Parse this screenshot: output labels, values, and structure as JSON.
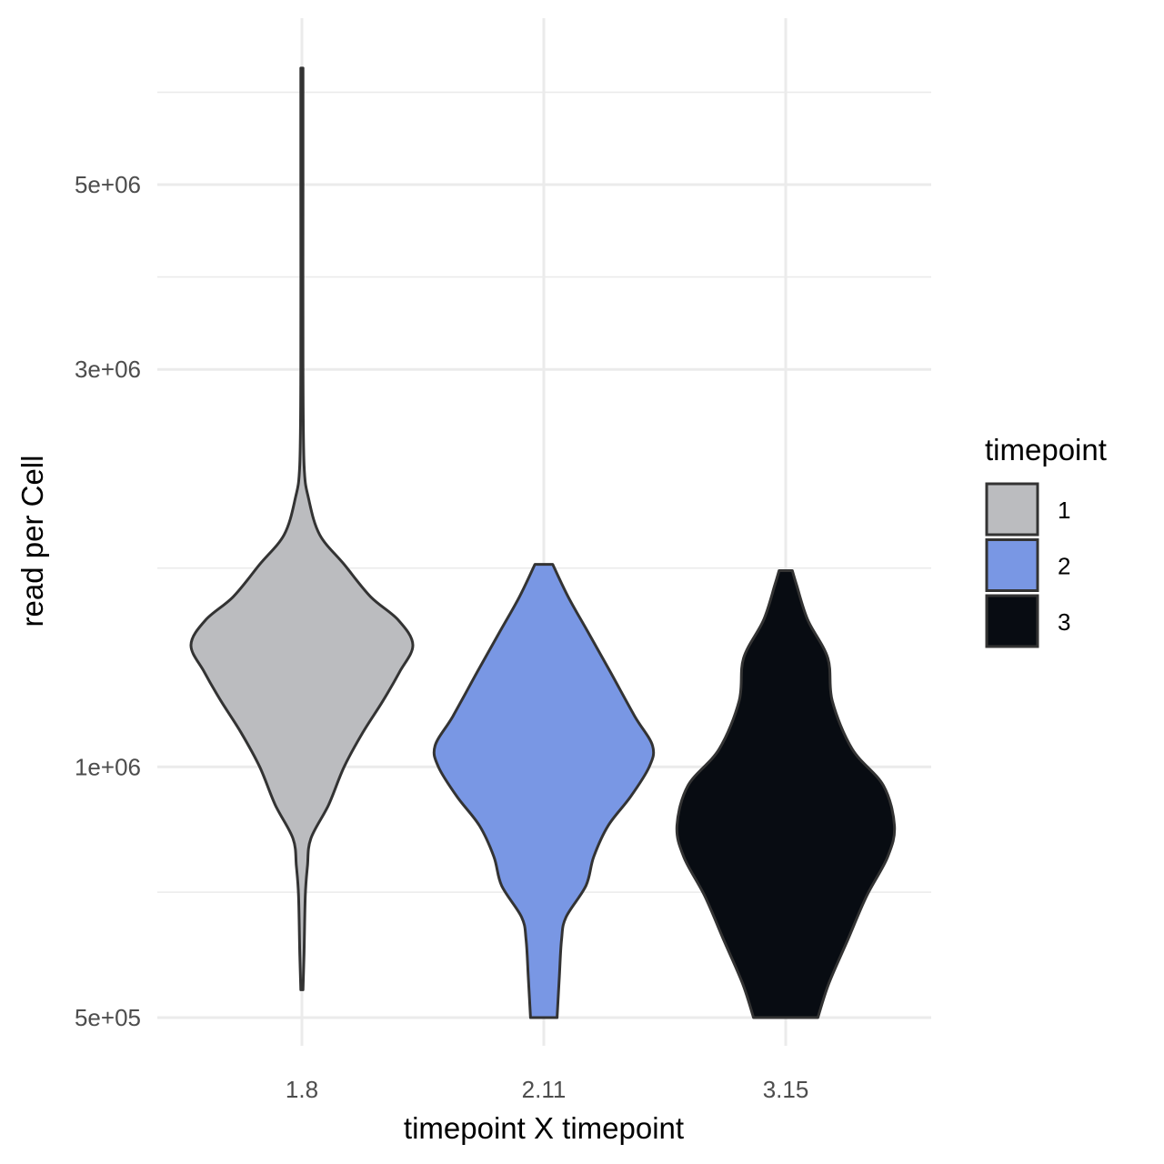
{
  "chart_data": {
    "type": "violin",
    "title": "",
    "xlabel": "timepoint X timepoint",
    "ylabel": "read per Cell",
    "y_scale": "log10",
    "ylim": [
      470000,
      7500000
    ],
    "y_ticks": [
      500000,
      1000000,
      3000000,
      5000000
    ],
    "y_tick_labels": [
      "5e+05",
      "1e+06",
      "3e+06",
      "5e+06"
    ],
    "categories": [
      "1.8",
      "2.11",
      "3.15"
    ],
    "grid": true,
    "legend": {
      "title": "timepoint",
      "placement": "right",
      "entries": [
        {
          "label": "1",
          "color": "#BBBCBF"
        },
        {
          "label": "2",
          "color": "#7997E4"
        },
        {
          "label": "3",
          "color": "#080C12"
        }
      ]
    },
    "series": [
      {
        "category": "1.8",
        "group": "1",
        "color": "#BBBCBF",
        "density": [
          {
            "y": 540000,
            "w": 0.01
          },
          {
            "y": 600000,
            "w": 0.02
          },
          {
            "y": 700000,
            "w": 0.03
          },
          {
            "y": 760000,
            "w": 0.05
          },
          {
            "y": 820000,
            "w": 0.08
          },
          {
            "y": 900000,
            "w": 0.24
          },
          {
            "y": 1000000,
            "w": 0.38
          },
          {
            "y": 1100000,
            "w": 0.55
          },
          {
            "y": 1200000,
            "w": 0.73
          },
          {
            "y": 1300000,
            "w": 0.88
          },
          {
            "y": 1400000,
            "w": 1.0
          },
          {
            "y": 1500000,
            "w": 0.87
          },
          {
            "y": 1600000,
            "w": 0.62
          },
          {
            "y": 1750000,
            "w": 0.38
          },
          {
            "y": 1900000,
            "w": 0.16
          },
          {
            "y": 2100000,
            "w": 0.06
          },
          {
            "y": 2300000,
            "w": 0.02
          },
          {
            "y": 3000000,
            "w": 0.01
          },
          {
            "y": 5000000,
            "w": 0.01
          },
          {
            "y": 6900000,
            "w": 0.01
          }
        ]
      },
      {
        "category": "2.11",
        "group": "2",
        "color": "#7997E4",
        "density": [
          {
            "y": 500000,
            "w": 0.12
          },
          {
            "y": 560000,
            "w": 0.14
          },
          {
            "y": 620000,
            "w": 0.16
          },
          {
            "y": 660000,
            "w": 0.2
          },
          {
            "y": 720000,
            "w": 0.38
          },
          {
            "y": 780000,
            "w": 0.45
          },
          {
            "y": 850000,
            "w": 0.58
          },
          {
            "y": 920000,
            "w": 0.78
          },
          {
            "y": 1000000,
            "w": 0.95
          },
          {
            "y": 1060000,
            "w": 0.98
          },
          {
            "y": 1150000,
            "w": 0.82
          },
          {
            "y": 1300000,
            "w": 0.6
          },
          {
            "y": 1450000,
            "w": 0.4
          },
          {
            "y": 1600000,
            "w": 0.22
          },
          {
            "y": 1750000,
            "w": 0.08
          }
        ]
      },
      {
        "category": "3.15",
        "group": "3",
        "color": "#080C12",
        "density": [
          {
            "y": 500000,
            "w": 0.29
          },
          {
            "y": 550000,
            "w": 0.39
          },
          {
            "y": 620000,
            "w": 0.56
          },
          {
            "y": 700000,
            "w": 0.73
          },
          {
            "y": 780000,
            "w": 0.92
          },
          {
            "y": 850000,
            "w": 0.98
          },
          {
            "y": 950000,
            "w": 0.88
          },
          {
            "y": 1050000,
            "w": 0.6
          },
          {
            "y": 1200000,
            "w": 0.42
          },
          {
            "y": 1350000,
            "w": 0.38
          },
          {
            "y": 1500000,
            "w": 0.2
          },
          {
            "y": 1650000,
            "w": 0.1
          },
          {
            "y": 1720000,
            "w": 0.06
          }
        ]
      }
    ]
  }
}
